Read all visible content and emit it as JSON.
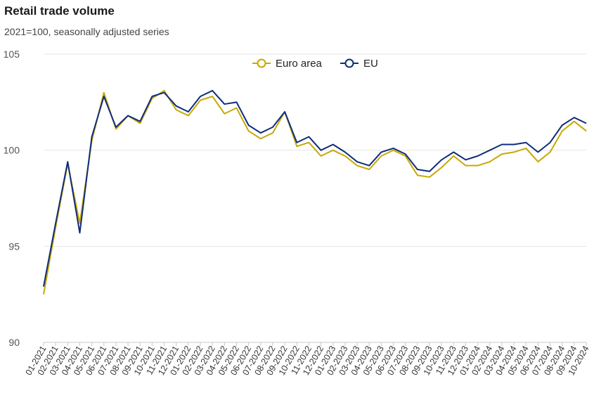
{
  "chart_data": {
    "type": "line",
    "title": "Retail trade volume",
    "subtitle": "2021=100, seasonally adjusted series",
    "ylim": [
      90,
      105
    ],
    "yticks": [
      90,
      95,
      100,
      105
    ],
    "grid": true,
    "legend_position": "top-center",
    "x": [
      "01-2021",
      "02-2021",
      "03-2021",
      "04-2021",
      "05-2021",
      "06-2021",
      "07-2021",
      "08-2021",
      "09-2021",
      "10-2021",
      "11-2021",
      "12-2021",
      "01-2022",
      "02-2022",
      "03-2022",
      "04-2022",
      "05-2022",
      "06-2022",
      "07-2022",
      "08-2022",
      "09-2022",
      "10-2022",
      "11-2022",
      "12-2022",
      "01-2023",
      "02-2023",
      "03-2023",
      "04-2023",
      "05-2023",
      "06-2023",
      "07-2023",
      "08-2023",
      "09-2023",
      "10-2023",
      "11-2023",
      "12-2023",
      "01-2024",
      "02-2024",
      "03-2024",
      "04-2024",
      "05-2024",
      "06-2024",
      "07-2024",
      "08-2024",
      "09-2024",
      "10-2024"
    ],
    "series": [
      {
        "name": "Euro area",
        "color": "#c8a800",
        "values": [
          92.5,
          96.0,
          99.3,
          96.2,
          100.5,
          103.0,
          101.1,
          101.8,
          101.4,
          102.7,
          103.1,
          102.1,
          101.8,
          102.6,
          102.8,
          101.9,
          102.2,
          101.0,
          100.6,
          100.9,
          102.0,
          100.2,
          100.4,
          99.7,
          100.0,
          99.7,
          99.2,
          99.0,
          99.7,
          100.0,
          99.7,
          98.7,
          98.6,
          99.1,
          99.7,
          99.2,
          99.2,
          99.4,
          99.8,
          99.9,
          100.1,
          99.4,
          99.9,
          101.0,
          101.5,
          101.0
        ]
      },
      {
        "name": "EU",
        "color": "#0e2d7a",
        "values": [
          92.9,
          96.2,
          99.4,
          95.7,
          100.7,
          102.8,
          101.2,
          101.8,
          101.5,
          102.8,
          103.0,
          102.3,
          102.0,
          102.8,
          103.1,
          102.4,
          102.5,
          101.3,
          100.9,
          101.2,
          102.0,
          100.4,
          100.7,
          100.0,
          100.3,
          99.9,
          99.4,
          99.2,
          99.9,
          100.1,
          99.8,
          99.0,
          98.9,
          99.5,
          99.9,
          99.5,
          99.7,
          100.0,
          100.3,
          100.3,
          100.4,
          99.9,
          100.4,
          101.3,
          101.7,
          101.4
        ]
      }
    ]
  }
}
